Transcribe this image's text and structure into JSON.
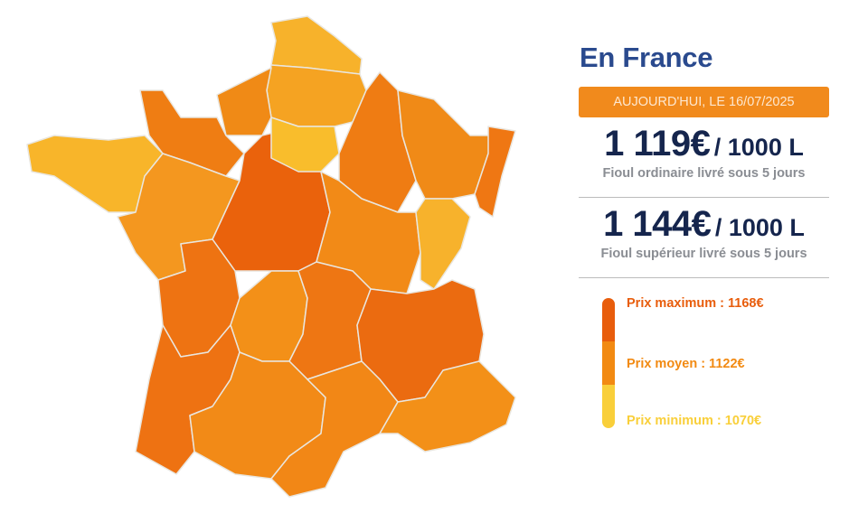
{
  "title": "En France",
  "date_banner": "AUJOURD'HUI, LE 16/07/2025",
  "prices": [
    {
      "amount": "1 119€",
      "unit": "/ 1000 L",
      "label": "Fioul ordinaire livré sous 5 jours"
    },
    {
      "amount": "1 144€",
      "unit": "/ 1000 L",
      "label": "Fioul supérieur livré sous 5 jours"
    }
  ],
  "legend": {
    "max": {
      "label": "Prix maximum : 1168€",
      "color": "#e85d0c"
    },
    "avg": {
      "label": "Prix moyen : 1122€",
      "color": "#f28a12"
    },
    "min": {
      "label": "Prix minimum : 1070€",
      "color": "#f9cf3a"
    }
  },
  "chart_data": {
    "type": "choropleth",
    "scale": {
      "min": 1070,
      "avg": 1122,
      "max": 1168
    },
    "region_colors": [
      "#f7b22b",
      "#f5a322",
      "#f08a16",
      "#ef7d13",
      "#f8b52a",
      "#f4971f",
      "#ea620c",
      "#f9bd2c",
      "#ef7c13",
      "#f08a17",
      "#ef7713",
      "#f28a17",
      "#f7b22c",
      "#ee7312",
      "#f39018",
      "#ee7613",
      "#eb6b10",
      "#ee7212",
      "#f28a17",
      "#f28716",
      "#f39018"
    ]
  }
}
